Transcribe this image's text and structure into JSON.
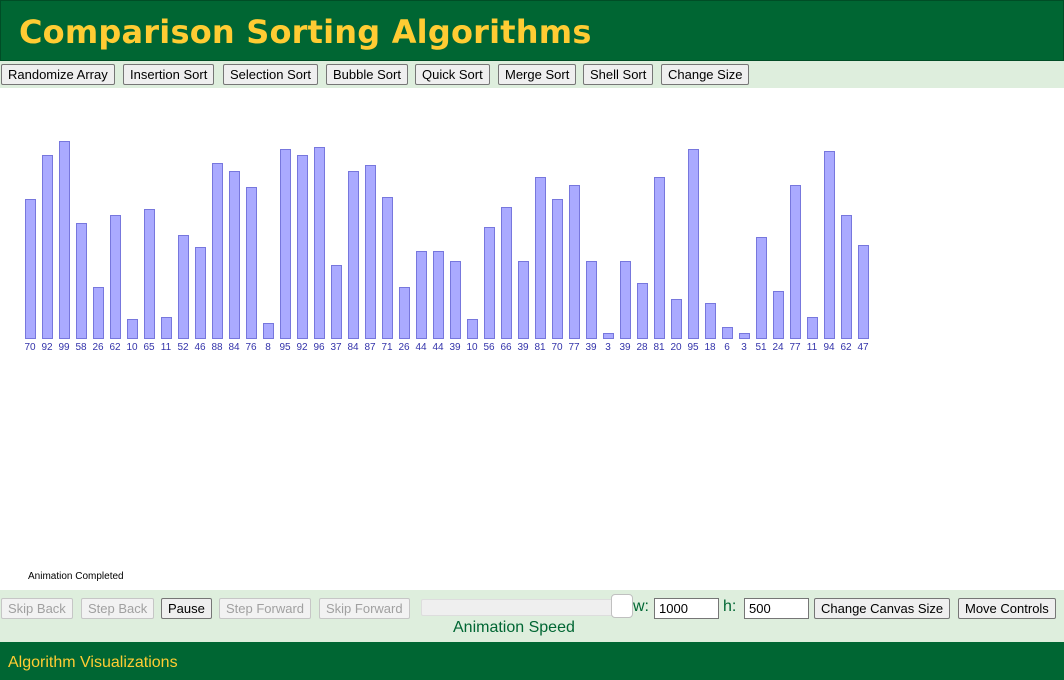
{
  "header": {
    "title": "Comparison Sorting Algorithms"
  },
  "algorithm_buttons": [
    "Randomize Array",
    "Insertion Sort",
    "Selection Sort",
    "Bubble Sort",
    "Quick Sort",
    "Merge Sort",
    "Shell Sort",
    "Change Size"
  ],
  "array": {
    "values": [
      70,
      92,
      99,
      58,
      26,
      62,
      10,
      65,
      11,
      52,
      46,
      88,
      84,
      76,
      8,
      95,
      92,
      96,
      37,
      84,
      87,
      71,
      26,
      44,
      44,
      39,
      10,
      56,
      66,
      39,
      81,
      70,
      77,
      39,
      3,
      39,
      28,
      81,
      20,
      95,
      18,
      6,
      3,
      51,
      24,
      77,
      11,
      94,
      62,
      47
    ],
    "max_value": 100,
    "bar_color": "#aaaaff",
    "bar_border_color": "#7777dd",
    "label_color": "#3333aa"
  },
  "status": {
    "text": "Animation Completed"
  },
  "controls": {
    "skip_back": "Skip Back",
    "step_back": "Step Back",
    "pause": "Pause",
    "step_forward": "Step Forward",
    "skip_forward": "Skip Forward",
    "speed_label": "Animation Speed",
    "speed_fraction": 0.95,
    "width_label": "w:",
    "width_value": "1000",
    "height_label": "h:",
    "height_value": "500",
    "change_canvas_size": "Change Canvas Size",
    "move_controls": "Move Controls"
  },
  "footer": {
    "text": "Algorithm Visualizations"
  },
  "colors": {
    "brand_green": "#006633",
    "brand_yellow": "#ffcc33",
    "toolbar_bg": "#deeedd"
  }
}
